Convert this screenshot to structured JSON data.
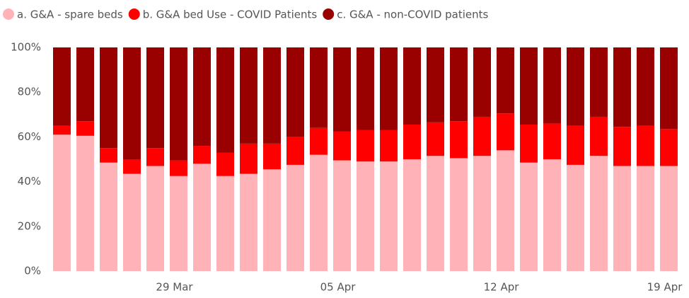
{
  "chart_data": {
    "type": "stacked_bar",
    "categories": [
      null,
      null,
      null,
      null,
      null,
      "29 Mar",
      null,
      null,
      null,
      null,
      null,
      null,
      "05 Apr",
      null,
      null,
      null,
      null,
      null,
      null,
      "12 Apr",
      null,
      null,
      null,
      null,
      null,
      null,
      "19 Apr"
    ],
    "series": [
      {
        "name": "a. G&A - spare beds",
        "color": "#ffb3b8",
        "values": [
          61,
          60.5,
          48.5,
          43.5,
          47,
          42.5,
          48,
          42.5,
          43.5,
          45.5,
          47.5,
          52,
          49.5,
          49,
          49,
          50,
          51.5,
          50.5,
          51.5,
          54,
          48.5,
          50,
          47.5,
          51.5,
          47,
          47,
          47
        ]
      },
      {
        "name": "b. G&A bed Use - COVID Patients",
        "color": "#ff0000",
        "values": [
          4,
          6.5,
          6.5,
          6.5,
          8,
          7,
          8,
          10.5,
          13.5,
          11.5,
          12.5,
          12,
          13,
          14,
          14,
          15.5,
          15,
          16.5,
          17.5,
          16.5,
          17,
          16,
          17.5,
          17.5,
          17.5,
          18,
          16.5
        ]
      },
      {
        "name": "c. G&A - non-COVID patients",
        "color": "#990000",
        "values": [
          35,
          33,
          45,
          50,
          45,
          50.5,
          44,
          47,
          43,
          43,
          40,
          36,
          37.5,
          37,
          37,
          34.5,
          33.5,
          33,
          31,
          29.5,
          34.5,
          34,
          35,
          31,
          35.5,
          35,
          36.5
        ]
      }
    ],
    "ylim": [
      0,
      100
    ],
    "yticks": [
      {
        "value": 0,
        "label": "0%"
      },
      {
        "value": 20,
        "label": "20%"
      },
      {
        "value": 40,
        "label": "40%"
      },
      {
        "value": 60,
        "label": "60%"
      },
      {
        "value": 80,
        "label": "80%"
      },
      {
        "value": 100,
        "label": "100%"
      }
    ],
    "legend": "top-left"
  }
}
